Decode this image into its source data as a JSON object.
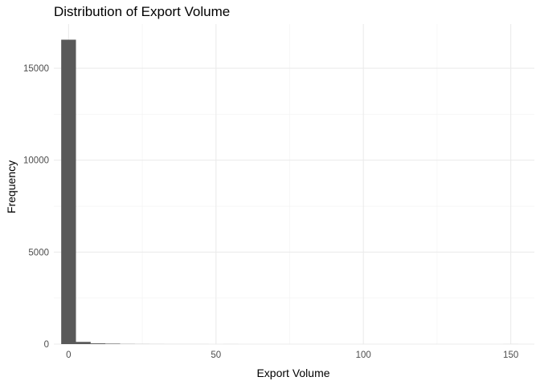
{
  "chart_data": {
    "type": "bar",
    "subtype": "histogram",
    "title": "Distribution of Export Volume",
    "xlabel": "Export Volume",
    "ylabel": "Frequency",
    "xlim": [
      -5,
      158
    ],
    "ylim": [
      0,
      17400
    ],
    "x_ticks": [
      0,
      50,
      100,
      150
    ],
    "y_ticks": [
      0,
      5000,
      10000,
      15000
    ],
    "x_minor_ticks": [
      25,
      75,
      125
    ],
    "y_minor_ticks": [
      2500,
      7500,
      12500
    ],
    "grid": true,
    "bar_color": "#595959",
    "bin_width": 5,
    "bins": [
      {
        "x0": -2.5,
        "x1": 2.5,
        "count": 16550
      },
      {
        "x0": 2.5,
        "x1": 7.5,
        "count": 120
      },
      {
        "x0": 7.5,
        "x1": 12.5,
        "count": 40
      },
      {
        "x0": 12.5,
        "x1": 17.5,
        "count": 25
      },
      {
        "x0": 17.5,
        "x1": 22.5,
        "count": 8
      },
      {
        "x0": 22.5,
        "x1": 27.5,
        "count": 4
      },
      {
        "x0": 27.5,
        "x1": 32.5,
        "count": 2
      },
      {
        "x0": 32.5,
        "x1": 37.5,
        "count": 1
      },
      {
        "x0": 37.5,
        "x1": 42.5,
        "count": 1
      },
      {
        "x0": 42.5,
        "x1": 47.5,
        "count": 1
      },
      {
        "x0": 47.5,
        "x1": 52.5,
        "count": 0
      },
      {
        "x0": 52.5,
        "x1": 57.5,
        "count": 1
      },
      {
        "x0": 57.5,
        "x1": 62.5,
        "count": 0
      },
      {
        "x0": 62.5,
        "x1": 67.5,
        "count": 0
      },
      {
        "x0": 67.5,
        "x1": 72.5,
        "count": 0
      },
      {
        "x0": 72.5,
        "x1": 77.5,
        "count": 0
      },
      {
        "x0": 77.5,
        "x1": 82.5,
        "count": 0
      },
      {
        "x0": 82.5,
        "x1": 87.5,
        "count": 0
      },
      {
        "x0": 87.5,
        "x1": 92.5,
        "count": 0
      },
      {
        "x0": 92.5,
        "x1": 97.5,
        "count": 0
      },
      {
        "x0": 97.5,
        "x1": 102.5,
        "count": 0
      },
      {
        "x0": 102.5,
        "x1": 107.5,
        "count": 0
      },
      {
        "x0": 107.5,
        "x1": 112.5,
        "count": 0
      },
      {
        "x0": 112.5,
        "x1": 117.5,
        "count": 0
      },
      {
        "x0": 117.5,
        "x1": 122.5,
        "count": 0
      },
      {
        "x0": 122.5,
        "x1": 127.5,
        "count": 0
      },
      {
        "x0": 127.5,
        "x1": 132.5,
        "count": 0
      },
      {
        "x0": 132.5,
        "x1": 137.5,
        "count": 0
      },
      {
        "x0": 137.5,
        "x1": 142.5,
        "count": 0
      },
      {
        "x0": 142.5,
        "x1": 147.5,
        "count": 0
      },
      {
        "x0": 147.5,
        "x1": 152.5,
        "count": 1
      }
    ]
  }
}
